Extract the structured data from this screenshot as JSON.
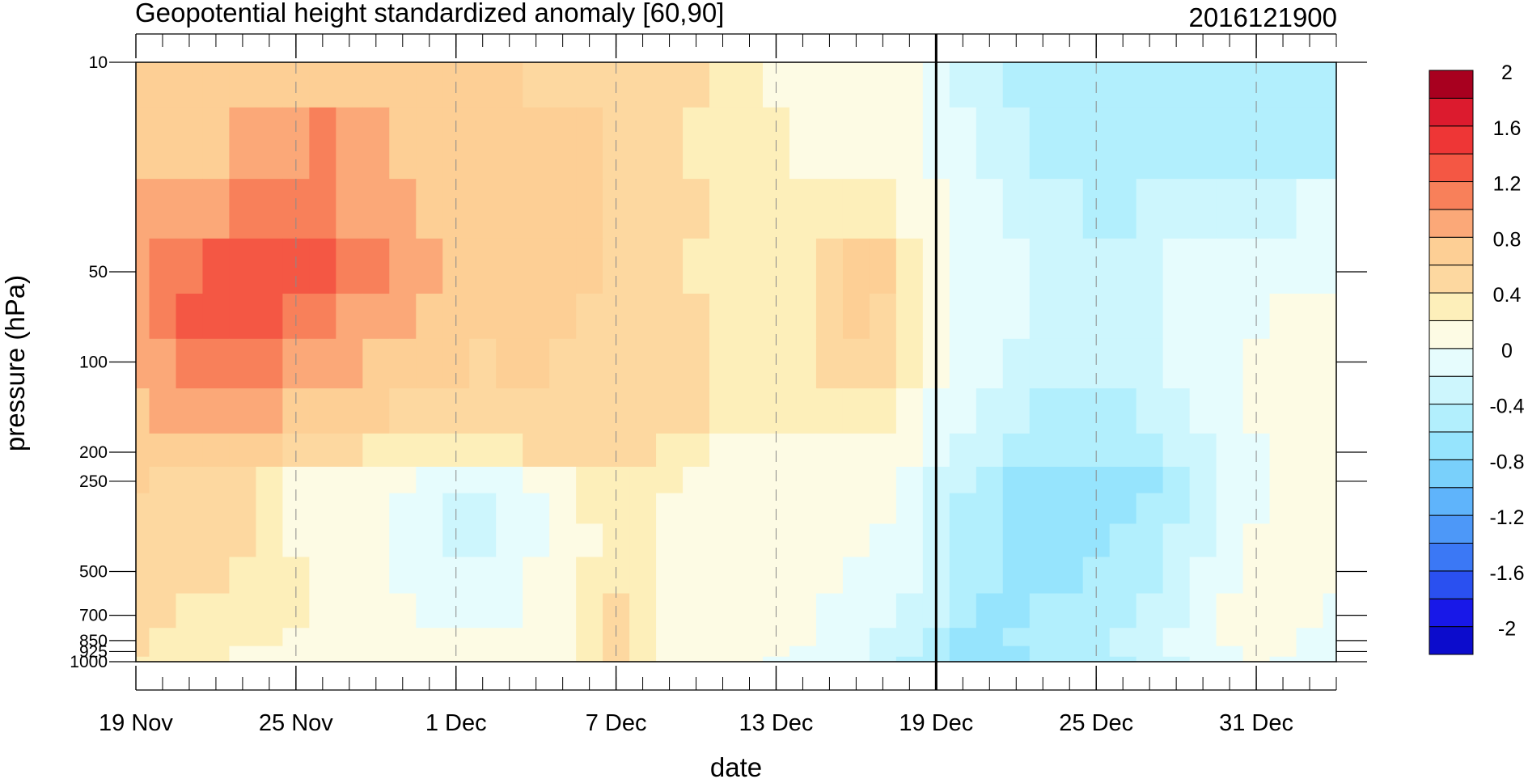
{
  "chart_data": {
    "type": "heatmap",
    "title": "Geopotential height standardized anomaly [60,90]",
    "timestamp": "2016121900",
    "xlabel": "date",
    "ylabel": "pressure (hPa)",
    "x_start": "2016-11-19",
    "x_end": "2017-01-03",
    "x_major_ticks": [
      {
        "date": "2016-11-19",
        "label": "19 Nov"
      },
      {
        "date": "2016-11-25",
        "label": "25 Nov"
      },
      {
        "date": "2016-12-01",
        "label": "1 Dec"
      },
      {
        "date": "2016-12-07",
        "label": "7 Dec"
      },
      {
        "date": "2016-12-13",
        "label": "13 Dec"
      },
      {
        "date": "2016-12-19",
        "label": "19 Dec"
      },
      {
        "date": "2016-12-25",
        "label": "25 Dec"
      },
      {
        "date": "2016-12-31",
        "label": "31 Dec"
      }
    ],
    "current_date": "2016-12-19",
    "y_scale": "log",
    "y_reversed": true,
    "y_ticks": [
      {
        "value": 10,
        "label": "10"
      },
      {
        "value": 50,
        "label": "50"
      },
      {
        "value": 100,
        "label": "100"
      },
      {
        "value": 200,
        "label": "200"
      },
      {
        "value": 250,
        "label": "250"
      },
      {
        "value": 500,
        "label": "500"
      },
      {
        "value": 700,
        "label": "700"
      },
      {
        "value": 850,
        "label": "850"
      },
      {
        "value": 925,
        "label": "925"
      },
      {
        "value": 1000,
        "label": "1000"
      }
    ],
    "pressure_levels": [
      10,
      20,
      30,
      50,
      70,
      100,
      150,
      200,
      250,
      300,
      400,
      500,
      700,
      850,
      925,
      1000
    ],
    "dates": [
      "2016-11-19",
      "2016-11-20",
      "2016-11-21",
      "2016-11-22",
      "2016-11-23",
      "2016-11-24",
      "2016-11-25",
      "2016-11-26",
      "2016-11-27",
      "2016-11-28",
      "2016-11-29",
      "2016-11-30",
      "2016-12-01",
      "2016-12-02",
      "2016-12-03",
      "2016-12-04",
      "2016-12-05",
      "2016-12-06",
      "2016-12-07",
      "2016-12-08",
      "2016-12-09",
      "2016-12-10",
      "2016-12-11",
      "2016-12-12",
      "2016-12-13",
      "2016-12-14",
      "2016-12-15",
      "2016-12-16",
      "2016-12-17",
      "2016-12-18",
      "2016-12-19",
      "2016-12-20",
      "2016-12-21",
      "2016-12-22",
      "2016-12-23",
      "2016-12-24",
      "2016-12-25",
      "2016-12-26",
      "2016-12-27",
      "2016-12-28",
      "2016-12-29",
      "2016-12-30",
      "2016-12-31",
      "2017-01-01",
      "2017-01-02",
      "2017-01-03"
    ],
    "values": [
      [
        0.62,
        0.63,
        0.64,
        0.64,
        0.66,
        0.7,
        0.72,
        0.74,
        0.72,
        0.7,
        0.68,
        0.66,
        0.64,
        0.62,
        0.6,
        0.58,
        0.56,
        0.56,
        0.55,
        0.48,
        0.44,
        0.4,
        0.3,
        0.2,
        0.15,
        0.12,
        0.1,
        0.08,
        0.06,
        0.02,
        -0.1,
        -0.22,
        -0.34,
        -0.46,
        -0.54,
        -0.58,
        -0.58,
        -0.56,
        -0.54,
        -0.52,
        -0.5,
        -0.48,
        -0.5,
        -0.52,
        -0.54,
        -0.54
      ],
      [
        0.64,
        0.66,
        0.7,
        0.76,
        0.84,
        0.92,
        0.98,
        1.0,
        0.94,
        0.86,
        0.78,
        0.72,
        0.68,
        0.66,
        0.64,
        0.62,
        0.6,
        0.6,
        0.58,
        0.52,
        0.44,
        0.38,
        0.3,
        0.24,
        0.2,
        0.18,
        0.16,
        0.14,
        0.12,
        0.04,
        -0.06,
        -0.18,
        -0.28,
        -0.38,
        -0.46,
        -0.5,
        -0.52,
        -0.5,
        -0.48,
        -0.46,
        -0.44,
        -0.42,
        -0.42,
        -0.42,
        -0.42,
        -0.42
      ],
      [
        0.82,
        0.86,
        0.9,
        0.96,
        1.02,
        1.08,
        1.1,
        1.06,
        0.98,
        0.9,
        0.82,
        0.74,
        0.7,
        0.68,
        0.66,
        0.64,
        0.62,
        0.6,
        0.58,
        0.52,
        0.46,
        0.4,
        0.32,
        0.26,
        0.22,
        0.24,
        0.3,
        0.34,
        0.34,
        0.12,
        0.0,
        -0.08,
        -0.16,
        -0.24,
        -0.34,
        -0.4,
        -0.44,
        -0.42,
        -0.38,
        -0.34,
        -0.3,
        -0.26,
        -0.24,
        -0.22,
        -0.2,
        -0.2
      ],
      [
        0.98,
        1.06,
        1.18,
        1.24,
        1.26,
        1.26,
        1.24,
        1.2,
        1.1,
        1.0,
        0.88,
        0.8,
        0.74,
        0.72,
        0.7,
        0.68,
        0.64,
        0.6,
        0.56,
        0.5,
        0.44,
        0.38,
        0.32,
        0.28,
        0.3,
        0.38,
        0.54,
        0.66,
        0.64,
        0.22,
        0.02,
        -0.06,
        -0.12,
        -0.18,
        -0.24,
        -0.3,
        -0.32,
        -0.3,
        -0.26,
        -0.2,
        -0.16,
        -0.14,
        -0.12,
        -0.1,
        -0.06,
        -0.04
      ],
      [
        0.96,
        1.04,
        1.2,
        1.28,
        1.26,
        1.2,
        1.14,
        1.06,
        0.98,
        0.9,
        0.82,
        0.76,
        0.7,
        0.66,
        0.66,
        0.66,
        0.62,
        0.56,
        0.52,
        0.5,
        0.48,
        0.44,
        0.38,
        0.32,
        0.3,
        0.34,
        0.5,
        0.62,
        0.58,
        0.24,
        0.02,
        -0.06,
        -0.12,
        -0.18,
        -0.26,
        -0.32,
        -0.34,
        -0.32,
        -0.26,
        -0.18,
        -0.12,
        -0.06,
        -0.02,
        0.02,
        0.06,
        0.08
      ],
      [
        0.88,
        0.96,
        1.06,
        1.12,
        1.1,
        1.04,
        0.98,
        0.92,
        0.86,
        0.78,
        0.72,
        0.66,
        0.6,
        0.58,
        0.6,
        0.62,
        0.58,
        0.5,
        0.44,
        0.44,
        0.46,
        0.44,
        0.38,
        0.32,
        0.28,
        0.3,
        0.42,
        0.54,
        0.5,
        0.22,
        0.0,
        -0.08,
        -0.16,
        -0.24,
        -0.32,
        -0.38,
        -0.4,
        -0.38,
        -0.3,
        -0.2,
        -0.1,
        -0.02,
        0.04,
        0.08,
        0.1,
        0.12
      ],
      [
        0.76,
        0.82,
        0.86,
        0.88,
        0.86,
        0.82,
        0.78,
        0.74,
        0.68,
        0.6,
        0.52,
        0.46,
        0.42,
        0.42,
        0.44,
        0.48,
        0.5,
        0.5,
        0.46,
        0.46,
        0.44,
        0.42,
        0.36,
        0.3,
        0.26,
        0.26,
        0.3,
        0.34,
        0.3,
        0.14,
        -0.06,
        -0.16,
        -0.26,
        -0.36,
        -0.44,
        -0.5,
        -0.52,
        -0.5,
        -0.4,
        -0.28,
        -0.16,
        -0.06,
        0.02,
        0.08,
        0.1,
        0.12
      ],
      [
        0.7,
        0.74,
        0.74,
        0.72,
        0.68,
        0.62,
        0.56,
        0.48,
        0.42,
        0.38,
        0.36,
        0.36,
        0.38,
        0.38,
        0.38,
        0.4,
        0.44,
        0.48,
        0.48,
        0.4,
        0.3,
        0.22,
        0.14,
        0.1,
        0.1,
        0.12,
        0.14,
        0.18,
        0.16,
        0.08,
        -0.16,
        -0.26,
        -0.36,
        -0.46,
        -0.54,
        -0.58,
        -0.6,
        -0.58,
        -0.48,
        -0.36,
        -0.24,
        -0.12,
        -0.02,
        0.06,
        0.1,
        0.12
      ],
      [
        0.6,
        0.58,
        0.58,
        0.56,
        0.5,
        0.34,
        0.18,
        0.06,
        0.04,
        0.02,
        0.0,
        -0.06,
        -0.12,
        -0.12,
        -0.06,
        0.06,
        0.18,
        0.3,
        0.38,
        0.3,
        0.22,
        0.14,
        0.08,
        0.06,
        0.04,
        0.04,
        0.04,
        0.04,
        0.02,
        -0.04,
        -0.22,
        -0.38,
        -0.5,
        -0.62,
        -0.72,
        -0.78,
        -0.78,
        -0.74,
        -0.62,
        -0.48,
        -0.34,
        -0.2,
        -0.08,
        0.02,
        0.08,
        0.1
      ],
      [
        0.56,
        0.52,
        0.5,
        0.48,
        0.42,
        0.3,
        0.14,
        0.04,
        0.02,
        0.0,
        -0.04,
        -0.14,
        -0.22,
        -0.22,
        -0.14,
        -0.02,
        0.1,
        0.22,
        0.3,
        0.26,
        0.18,
        0.12,
        0.06,
        0.04,
        0.02,
        0.02,
        0.02,
        0.02,
        0.0,
        -0.08,
        -0.26,
        -0.44,
        -0.56,
        -0.66,
        -0.74,
        -0.76,
        -0.72,
        -0.68,
        -0.56,
        -0.42,
        -0.28,
        -0.14,
        -0.02,
        0.06,
        0.1,
        0.12
      ],
      [
        0.52,
        0.48,
        0.46,
        0.44,
        0.4,
        0.32,
        0.18,
        0.08,
        0.04,
        0.02,
        -0.06,
        -0.16,
        -0.26,
        -0.26,
        -0.18,
        -0.06,
        0.06,
        0.18,
        0.28,
        0.24,
        0.16,
        0.1,
        0.06,
        0.04,
        0.02,
        0.02,
        0.02,
        0.0,
        -0.02,
        -0.1,
        -0.3,
        -0.48,
        -0.6,
        -0.66,
        -0.7,
        -0.7,
        -0.66,
        -0.6,
        -0.48,
        -0.36,
        -0.22,
        -0.08,
        0.02,
        0.08,
        0.1,
        0.1
      ],
      [
        0.48,
        0.44,
        0.42,
        0.4,
        0.38,
        0.3,
        0.22,
        0.1,
        0.06,
        0.04,
        -0.02,
        -0.12,
        -0.2,
        -0.2,
        -0.12,
        0.0,
        0.12,
        0.24,
        0.32,
        0.26,
        0.18,
        0.1,
        0.06,
        0.04,
        0.02,
        0.02,
        0.0,
        -0.02,
        -0.06,
        -0.14,
        -0.34,
        -0.5,
        -0.6,
        -0.64,
        -0.64,
        -0.62,
        -0.6,
        -0.58,
        -0.44,
        -0.3,
        -0.16,
        -0.04,
        0.04,
        0.08,
        0.06,
        0.04
      ],
      [
        0.44,
        0.4,
        0.38,
        0.36,
        0.34,
        0.28,
        0.22,
        0.12,
        0.08,
        0.06,
        0.02,
        -0.04,
        -0.1,
        -0.1,
        -0.04,
        0.04,
        0.16,
        0.3,
        0.4,
        0.3,
        0.18,
        0.1,
        0.06,
        0.04,
        0.02,
        0.0,
        -0.04,
        -0.08,
        -0.14,
        -0.24,
        -0.4,
        -0.56,
        -0.64,
        -0.62,
        -0.58,
        -0.54,
        -0.5,
        -0.46,
        -0.34,
        -0.22,
        -0.1,
        0.0,
        0.06,
        0.06,
        0.02,
        -0.02
      ],
      [
        0.42,
        0.38,
        0.34,
        0.3,
        0.26,
        0.22,
        0.18,
        0.12,
        0.08,
        0.06,
        0.04,
        0.02,
        0.0,
        0.0,
        0.02,
        0.06,
        0.16,
        0.36,
        0.46,
        0.32,
        0.18,
        0.1,
        0.06,
        0.04,
        0.02,
        0.0,
        -0.06,
        -0.14,
        -0.24,
        -0.34,
        -0.48,
        -0.62,
        -0.66,
        -0.6,
        -0.54,
        -0.48,
        -0.44,
        -0.4,
        -0.3,
        -0.18,
        -0.08,
        0.0,
        0.04,
        0.02,
        -0.04,
        -0.08
      ],
      [
        0.4,
        0.36,
        0.3,
        0.24,
        0.18,
        0.14,
        0.1,
        0.06,
        0.02,
        0.0,
        0.04,
        0.08,
        0.06,
        0.04,
        0.02,
        0.04,
        0.14,
        0.34,
        0.44,
        0.3,
        0.16,
        0.08,
        0.04,
        0.02,
        0.0,
        -0.04,
        -0.1,
        -0.18,
        -0.28,
        -0.4,
        -0.54,
        -0.66,
        -0.68,
        -0.62,
        -0.56,
        -0.5,
        -0.44,
        -0.4,
        -0.3,
        -0.2,
        -0.1,
        -0.02,
        0.02,
        0.0,
        -0.06,
        -0.1
      ],
      [
        0.38,
        0.34,
        0.28,
        0.22,
        0.16,
        0.12,
        0.08,
        0.04,
        0.0,
        0.0,
        0.06,
        0.1,
        0.06,
        0.02,
        0.0,
        0.02,
        0.12,
        0.32,
        0.42,
        0.28,
        0.14,
        0.06,
        0.02,
        0.0,
        -0.02,
        -0.06,
        -0.12,
        -0.2,
        -0.3,
        -0.42,
        -0.56,
        -0.68,
        -0.7,
        -0.64,
        -0.58,
        -0.52,
        -0.46,
        -0.42,
        -0.32,
        -0.22,
        -0.12,
        -0.04,
        0.0,
        -0.02,
        -0.08,
        -0.12
      ]
    ],
    "contour_levels": [
      -2,
      -1.8,
      -1.6,
      -1.4,
      -1.2,
      -1,
      -0.8,
      -0.6,
      -0.4,
      -0.2,
      0,
      0.2,
      0.4,
      0.6,
      0.8,
      1,
      1.2,
      1.4,
      1.6,
      1.8,
      2
    ],
    "colorbar": {
      "labels": [
        "2",
        "1.6",
        "1.2",
        "0.8",
        "0.4",
        "0",
        "-0.4",
        "-0.8",
        "-1.2",
        "-1.6",
        "-2"
      ],
      "colors": [
        "#0c0ccc",
        "#1818e8",
        "#2a50f0",
        "#3b78f5",
        "#4d98f8",
        "#5fb4fb",
        "#79d0fb",
        "#96e4fd",
        "#b2effd",
        "#cdf6fd",
        "#e6fcfd",
        "#fdfbe4",
        "#fdefba",
        "#fdd8a0",
        "#fdcf95",
        "#fba878",
        "#f8805a",
        "#f45744",
        "#ee3636",
        "#dc1b2e",
        "#a8001f"
      ]
    },
    "grid": "dashed vertical lines at major date ticks"
  }
}
